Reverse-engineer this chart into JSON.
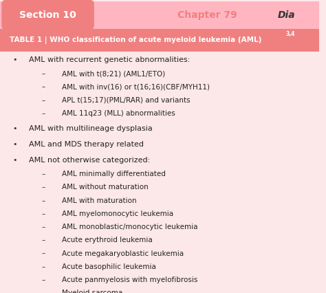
{
  "bg_color": "#fce8e8",
  "header_bg": "#f08080",
  "header_text": "TABLE 1 | WHO classification of acute myeloid leukemia (AML)",
  "header_superscript": "3,4",
  "header_text_color": "#ffffff",
  "section_top_bg": "#ffb6c1",
  "section_top_left_text": "Section 10",
  "section_top_left_color": "#ffffff",
  "section_top_left_bg": "#f08080",
  "chapter_text": "Chapter 79",
  "chapter_color": "#f08080",
  "dia_text": "Dia",
  "dia_color": "#333333",
  "bullet_color": "#333333",
  "text_color": "#222222",
  "bullet_items": [
    {
      "bullet": true,
      "text": "AML with recurrent genetic abnormalities:",
      "sub": [
        "AML with t(8;21) (AML1/ETO)",
        "AML with inv(16) or t(16;16)(CBF/MYH11)",
        "APL t(15;17)(PML/RAR) and variants",
        "AML 11q23 (MLL) abnormalities"
      ]
    },
    {
      "bullet": true,
      "text": "AML with multilineage dysplasia",
      "sub": []
    },
    {
      "bullet": true,
      "text": "AML and MDS therapy related",
      "sub": []
    },
    {
      "bullet": true,
      "text": "AML not otherwise categorized:",
      "sub": [
        "AML minimally differentiated",
        "AML without maturation",
        "AML with maturation",
        "AML myelomonocytic leukemia",
        "AML monoblastic/monocytic leukemia",
        "Acute erythroid leukemia",
        "Acute megakaryoblastic leukemia",
        "Acute basophilic leukemia",
        "Acute panmyelosis with myelofibrosis",
        "Myeloid sarcoma"
      ]
    }
  ]
}
